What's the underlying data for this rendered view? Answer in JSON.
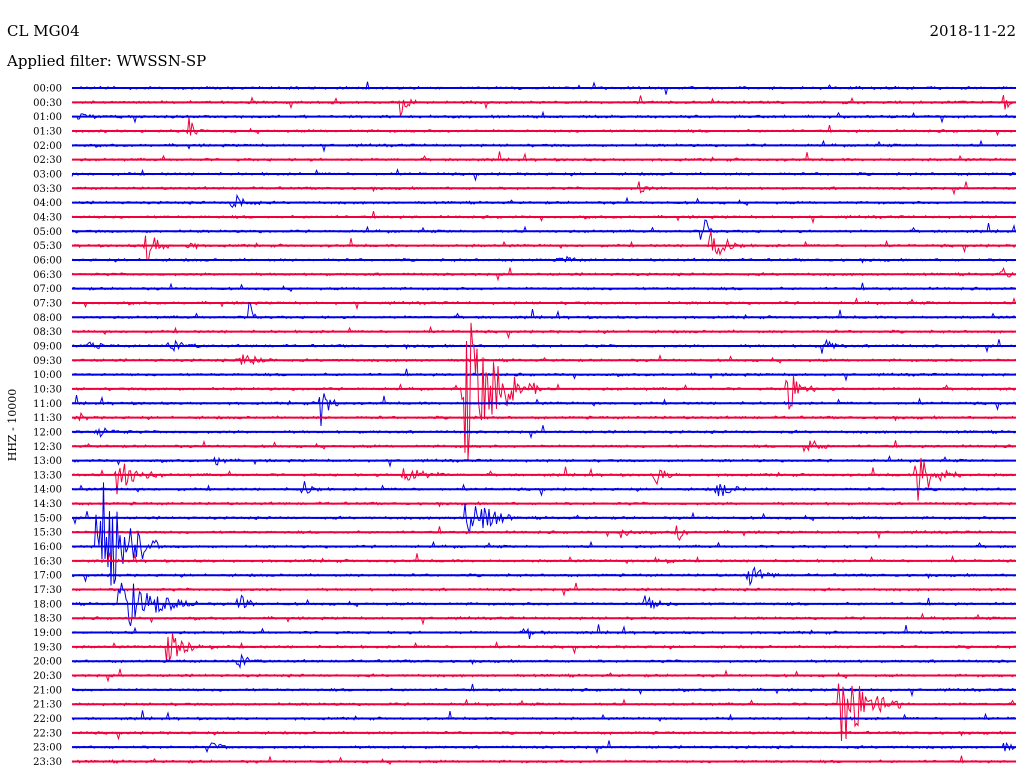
{
  "header": {
    "station": "CL MG04",
    "date": "2018-11-22",
    "filter": "Applied filter: WWSSN-SP"
  },
  "chart_data": {
    "type": "line",
    "title": "CL MG04",
    "subtitle": "Applied filter: WWSSN-SP",
    "ylabel": "HHZ - 10000",
    "row_labels": [
      "00:00",
      "00:30",
      "01:00",
      "01:30",
      "02:00",
      "02:30",
      "03:00",
      "03:30",
      "04:00",
      "04:30",
      "05:00",
      "05:30",
      "06:00",
      "06:30",
      "07:00",
      "07:30",
      "08:00",
      "08:30",
      "09:00",
      "09:30",
      "10:00",
      "10:30",
      "11:00",
      "11:30",
      "12:00",
      "12:30",
      "13:00",
      "13:30",
      "14:00",
      "14:30",
      "15:00",
      "15:30",
      "16:00",
      "16:30",
      "17:00",
      "17:30",
      "18:00",
      "18:30",
      "19:00",
      "19:30",
      "20:00",
      "20:30",
      "21:00",
      "21:30",
      "22:00",
      "22:30",
      "23:00",
      "23:30"
    ],
    "x_range_minutes": [
      0,
      30
    ],
    "colors": [
      "#0000e6",
      "#f0003c"
    ],
    "events": [
      {
        "row": 1,
        "minute": 10.4,
        "amplitude": 16,
        "duration": 0.6
      },
      {
        "row": 1,
        "minute": 29.6,
        "amplitude": 10,
        "duration": 0.7
      },
      {
        "row": 2,
        "minute": 0.2,
        "amplitude": 5,
        "duration": 0.8
      },
      {
        "row": 3,
        "minute": 3.7,
        "amplitude": 30,
        "duration": 0.3
      },
      {
        "row": 7,
        "minute": 18.0,
        "amplitude": 8,
        "duration": 0.5
      },
      {
        "row": 8,
        "minute": 5.1,
        "amplitude": 10,
        "duration": 1.0
      },
      {
        "row": 10,
        "minute": 20.0,
        "amplitude": 20,
        "duration": 0.7
      },
      {
        "row": 11,
        "minute": 2.3,
        "amplitude": 26,
        "duration": 0.8
      },
      {
        "row": 11,
        "minute": 3.7,
        "amplitude": 10,
        "duration": 0.4
      },
      {
        "row": 11,
        "minute": 20.3,
        "amplitude": 18,
        "duration": 1.2
      },
      {
        "row": 12,
        "minute": 15.5,
        "amplitude": 6,
        "duration": 0.8
      },
      {
        "row": 13,
        "minute": 29.6,
        "amplitude": 12,
        "duration": 0.3
      },
      {
        "row": 16,
        "minute": 5.6,
        "amplitude": 18,
        "duration": 0.6
      },
      {
        "row": 18,
        "minute": 0.5,
        "amplitude": 5,
        "duration": 0.8
      },
      {
        "row": 18,
        "minute": 3.1,
        "amplitude": 8,
        "duration": 1.0
      },
      {
        "row": 18,
        "minute": 23.8,
        "amplitude": 10,
        "duration": 0.8
      },
      {
        "row": 19,
        "minute": 5.3,
        "amplitude": 10,
        "duration": 1.2
      },
      {
        "row": 21,
        "minute": 12.4,
        "amplitude": 95,
        "duration": 2.5
      },
      {
        "row": 21,
        "minute": 22.7,
        "amplitude": 30,
        "duration": 0.9
      },
      {
        "row": 22,
        "minute": 7.9,
        "amplitude": 25,
        "duration": 0.6
      },
      {
        "row": 22,
        "minute": 30.0,
        "amplitude": 25,
        "duration": 0.3
      },
      {
        "row": 23,
        "minute": 0.2,
        "amplitude": 8,
        "duration": 0.4
      },
      {
        "row": 24,
        "minute": 0.8,
        "amplitude": 6,
        "duration": 1.2
      },
      {
        "row": 25,
        "minute": 23.3,
        "amplitude": 12,
        "duration": 0.8
      },
      {
        "row": 26,
        "minute": 4.5,
        "amplitude": 8,
        "duration": 0.6
      },
      {
        "row": 27,
        "minute": 1.4,
        "amplitude": 20,
        "duration": 1.5
      },
      {
        "row": 27,
        "minute": 10.5,
        "amplitude": 10,
        "duration": 1.5
      },
      {
        "row": 27,
        "minute": 18.5,
        "amplitude": 12,
        "duration": 0.8
      },
      {
        "row": 27,
        "minute": 26.8,
        "amplitude": 30,
        "duration": 1.5
      },
      {
        "row": 28,
        "minute": 7.3,
        "amplitude": 10,
        "duration": 0.8
      },
      {
        "row": 28,
        "minute": 20.5,
        "amplitude": 10,
        "duration": 1.0
      },
      {
        "row": 30,
        "minute": 12.5,
        "amplitude": 40,
        "duration": 1.5
      },
      {
        "row": 30,
        "minute": 30.0,
        "amplitude": 10,
        "duration": 0.4
      },
      {
        "row": 31,
        "minute": 17.4,
        "amplitude": 6,
        "duration": 0.8
      },
      {
        "row": 31,
        "minute": 19.2,
        "amplitude": 16,
        "duration": 0.4
      },
      {
        "row": 32,
        "minute": 0.8,
        "amplitude": 95,
        "duration": 2.0
      },
      {
        "row": 33,
        "minute": 18.5,
        "amplitude": 6,
        "duration": 0.8
      },
      {
        "row": 34,
        "minute": 21.5,
        "amplitude": 12,
        "duration": 1.0
      },
      {
        "row": 34,
        "minute": 30.0,
        "amplitude": 6,
        "duration": 0.5
      },
      {
        "row": 36,
        "minute": 1.5,
        "amplitude": 35,
        "duration": 2.5
      },
      {
        "row": 36,
        "minute": 5.3,
        "amplitude": 25,
        "duration": 0.5
      },
      {
        "row": 36,
        "minute": 18.2,
        "amplitude": 8,
        "duration": 1.0
      },
      {
        "row": 38,
        "minute": 14.5,
        "amplitude": 8,
        "duration": 0.6
      },
      {
        "row": 39,
        "minute": 3.0,
        "amplitude": 20,
        "duration": 1.5
      },
      {
        "row": 40,
        "minute": 5.2,
        "amplitude": 12,
        "duration": 0.8
      },
      {
        "row": 43,
        "minute": 24.4,
        "amplitude": 50,
        "duration": 2.0
      },
      {
        "row": 46,
        "minute": 4.3,
        "amplitude": 8,
        "duration": 0.8
      },
      {
        "row": 46,
        "minute": 29.6,
        "amplitude": 6,
        "duration": 0.6
      }
    ]
  }
}
